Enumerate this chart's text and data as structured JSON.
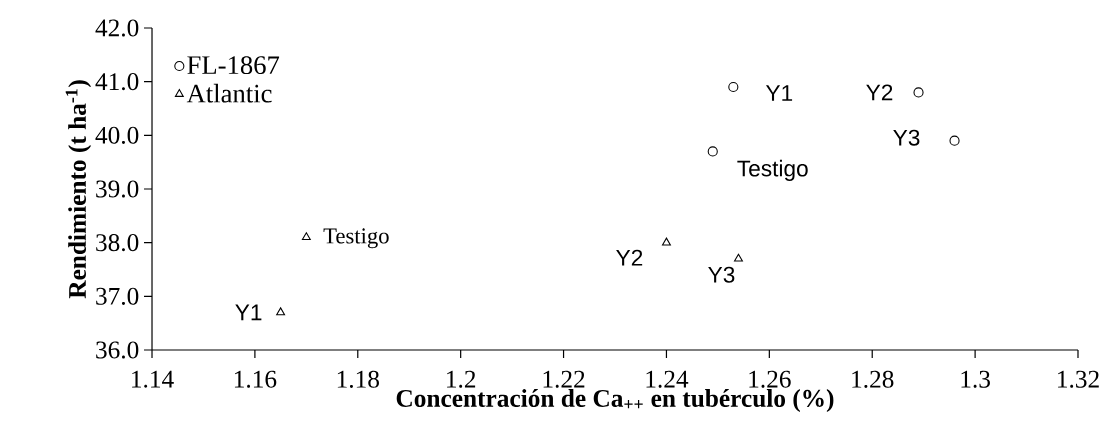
{
  "chart_data": {
    "type": "scatter",
    "xlabel": "Concentración de Ca$_{++}$ en tubérculo (%)",
    "ylabel": "Rendimiento (t ha$^{-1}$)",
    "xlim": [
      1.14,
      1.32
    ],
    "xticks": [
      1.14,
      1.16,
      1.18,
      1.2,
      1.22,
      1.24,
      1.26,
      1.28,
      1.3,
      1.32
    ],
    "ylim": [
      36,
      42
    ],
    "yticks": [
      {
        "value": 36,
        "label": "36.0"
      },
      {
        "value": 37,
        "label": "37.0"
      },
      {
        "value": 38,
        "label": "38.0"
      },
      {
        "value": 39,
        "label": "39.0"
      },
      {
        "value": 40,
        "label": "40.0"
      },
      {
        "value": 41,
        "label": "41.0"
      },
      {
        "value": 42,
        "label": "42.0"
      }
    ],
    "grid": false,
    "legend": "top left",
    "series": [
      {
        "name": "FL-1867",
        "color": "#000000",
        "marker": "circle",
        "x": [
          1.249,
          1.253,
          1.289,
          1.296
        ],
        "values": [
          39.7,
          40.9,
          40.8,
          39.9
        ]
      },
      {
        "name": "Atlantic",
        "color": "#000000",
        "marker": "triangle",
        "x": [
          1.17,
          1.165,
          1.24,
          1.254
        ],
        "values": [
          38.1,
          36.7,
          38.0,
          37.7
        ]
      }
    ],
    "annotations": [
      {
        "text": "Testigo",
        "x": 1.249,
        "y": 39.7
      },
      {
        "text": "Y1",
        "x": 1.253,
        "y": 40.9
      },
      {
        "text": "Y2",
        "x": 1.289,
        "y": 40.8
      },
      {
        "text": "Y3",
        "x": 1.296,
        "y": 39.9
      },
      {
        "text": "Testigo",
        "x": 1.17,
        "y": 38.1
      },
      {
        "text": "Y1",
        "x": 1.165,
        "y": 36.7
      },
      {
        "text": "Y2",
        "x": 1.24,
        "y": 38.0
      },
      {
        "text": "Y3",
        "x": 1.254,
        "y": 37.7
      }
    ]
  }
}
